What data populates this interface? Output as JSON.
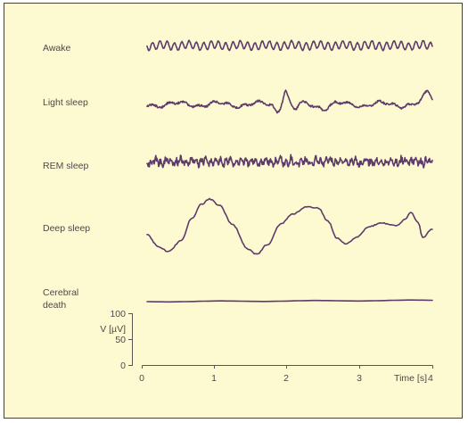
{
  "colors": {
    "background": "#fdfad2",
    "border": "#474235",
    "trace": "#5e3b6a",
    "text": "#4d4845"
  },
  "traces": [
    {
      "id": "awake",
      "label": "Awake"
    },
    {
      "id": "light",
      "label": "Light sleep"
    },
    {
      "id": "rem",
      "label": "REM sleep"
    },
    {
      "id": "deep",
      "label": "Deep sleep"
    },
    {
      "id": "death",
      "label_line1": "Cerebral",
      "label_line2": "death"
    }
  ],
  "voltage_axis": {
    "label": "V [µV]",
    "ticks": [
      "100",
      "50",
      "0"
    ]
  },
  "time_axis": {
    "label": "Time [s]",
    "ticks": [
      "0",
      "1",
      "2",
      "3",
      "4"
    ]
  }
}
